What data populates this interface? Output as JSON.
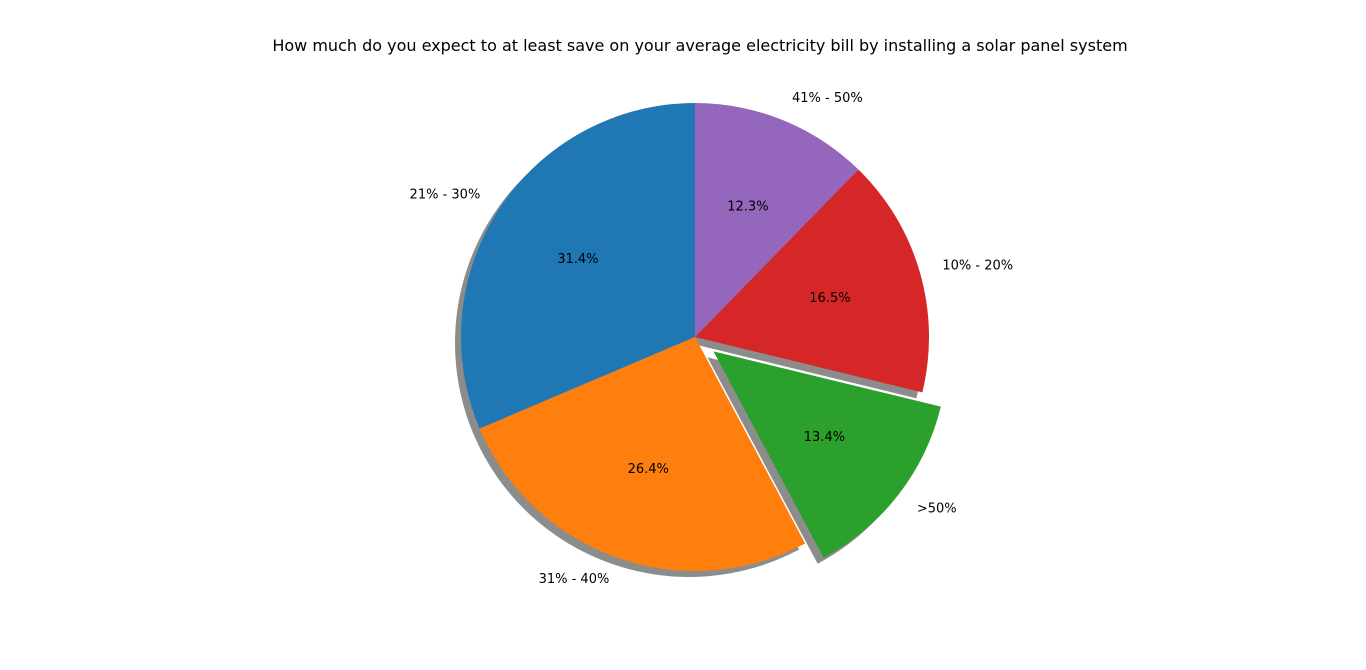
{
  "chart_data": {
    "type": "pie",
    "title": "How much do you expect to at least save on your average electricity bill by installing a solar panel system",
    "start_angle_deg": 90,
    "direction": "counterclockwise",
    "shadow": true,
    "slices": [
      {
        "label": "21% - 30%",
        "percent": 31.4,
        "percent_label": "31.4%",
        "color": "#1f77b4",
        "explode": 0
      },
      {
        "label": "31% - 40%",
        "percent": 26.4,
        "percent_label": "26.4%",
        "color": "#ff7f0e",
        "explode": 0
      },
      {
        "label": ">50%",
        "percent": 13.4,
        "percent_label": "13.4%",
        "color": "#2ca02c",
        "explode": 0.1
      },
      {
        "label": "10% - 20%",
        "percent": 16.5,
        "percent_label": "16.5%",
        "color": "#d62728",
        "explode": 0
      },
      {
        "label": "41% - 50%",
        "percent": 12.3,
        "percent_label": "12.3%",
        "color": "#9467bd",
        "explode": 0
      }
    ]
  }
}
